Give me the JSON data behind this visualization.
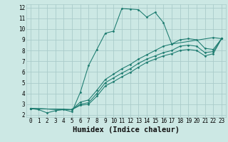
{
  "xlabel": "Humidex (Indice chaleur)",
  "background_color": "#cce8e4",
  "grid_color": "#aaccca",
  "line_color": "#1a7a6e",
  "xlim": [
    -0.5,
    23.5
  ],
  "ylim": [
    1.8,
    12.3
  ],
  "xticks": [
    0,
    1,
    2,
    3,
    4,
    5,
    6,
    7,
    8,
    9,
    10,
    11,
    12,
    13,
    14,
    15,
    16,
    17,
    18,
    19,
    20,
    21,
    22,
    23
  ],
  "yticks": [
    2,
    3,
    4,
    5,
    6,
    7,
    8,
    9,
    10,
    11,
    12
  ],
  "series": [
    {
      "x": [
        0,
        1,
        2,
        3,
        4,
        5,
        6,
        7,
        8,
        9,
        10,
        11,
        12,
        13,
        14,
        15,
        16,
        17,
        22,
        23
      ],
      "y": [
        2.6,
        2.5,
        2.2,
        2.4,
        2.5,
        2.3,
        4.1,
        6.6,
        8.1,
        9.6,
        9.8,
        11.9,
        11.85,
        11.8,
        11.1,
        11.55,
        10.6,
        8.6,
        9.2,
        9.1
      ]
    },
    {
      "x": [
        0,
        5,
        6,
        7,
        8,
        9,
        10,
        11,
        12,
        13,
        14,
        15,
        16,
        17,
        18,
        19,
        20,
        21,
        22,
        23
      ],
      "y": [
        2.6,
        2.5,
        3.2,
        3.4,
        4.3,
        5.3,
        5.8,
        6.3,
        6.7,
        7.2,
        7.6,
        8.0,
        8.4,
        8.6,
        9.0,
        9.1,
        9.0,
        8.2,
        8.1,
        9.1
      ]
    },
    {
      "x": [
        0,
        5,
        6,
        7,
        8,
        9,
        10,
        11,
        12,
        13,
        14,
        15,
        16,
        17,
        18,
        19,
        20,
        21,
        22,
        23
      ],
      "y": [
        2.6,
        2.5,
        3.0,
        3.15,
        4.0,
        5.0,
        5.45,
        5.9,
        6.3,
        6.8,
        7.2,
        7.5,
        7.8,
        8.0,
        8.4,
        8.5,
        8.4,
        7.8,
        7.9,
        9.1
      ]
    },
    {
      "x": [
        0,
        5,
        6,
        7,
        8,
        9,
        10,
        11,
        12,
        13,
        14,
        15,
        16,
        17,
        18,
        19,
        20,
        21,
        22,
        23
      ],
      "y": [
        2.6,
        2.5,
        2.9,
        3.0,
        3.75,
        4.7,
        5.1,
        5.55,
        5.95,
        6.45,
        6.9,
        7.2,
        7.5,
        7.7,
        8.0,
        8.1,
        8.0,
        7.5,
        7.7,
        9.1
      ]
    }
  ],
  "font_family": "monospace",
  "tick_labelsize": 5.5,
  "xlabel_fontsize": 7.5
}
